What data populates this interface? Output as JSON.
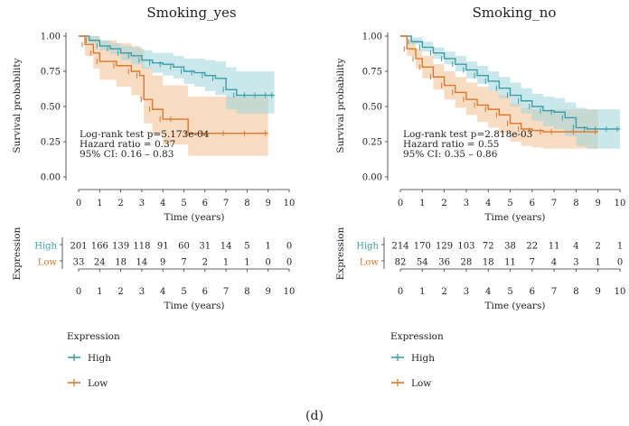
{
  "caption": "(d)",
  "colors": {
    "high": "#3a9ca6",
    "low": "#d9782e",
    "high_fill": "#9fd6dc",
    "low_fill": "#f3c9a2"
  },
  "chart_data": [
    {
      "type": "line",
      "title": "Smoking_yes",
      "xlabel": "Time (years)",
      "ylabel": "Survival probability",
      "xlim": [
        0,
        10
      ],
      "ylim": [
        0,
        1
      ],
      "xticks": [
        "0",
        "1",
        "2",
        "3",
        "4",
        "5",
        "6",
        "7",
        "8",
        "9",
        "10"
      ],
      "yticks": [
        "0.00",
        "0.25",
        "0.50",
        "0.75",
        "1.00"
      ],
      "annotation": [
        "Log-rank test p=5.173e-04",
        "Hazard ratio = 0.37",
        "95% CI: 0.16 – 0.83"
      ],
      "series": [
        {
          "name": "High",
          "x": [
            0,
            0.5,
            1,
            1.5,
            2,
            2.5,
            3,
            3.5,
            4,
            4.5,
            5,
            5.5,
            6,
            6.5,
            7,
            7.5,
            8,
            8.5,
            9,
            9.3
          ],
          "y": [
            1.0,
            0.97,
            0.93,
            0.91,
            0.88,
            0.86,
            0.83,
            0.81,
            0.8,
            0.78,
            0.75,
            0.74,
            0.72,
            0.7,
            0.62,
            0.58,
            0.58,
            0.58,
            0.58,
            0.58
          ],
          "lower": [
            1.0,
            0.95,
            0.9,
            0.87,
            0.83,
            0.8,
            0.77,
            0.74,
            0.72,
            0.7,
            0.66,
            0.64,
            0.61,
            0.58,
            0.48,
            0.45,
            0.45,
            0.45,
            0.45,
            0.45
          ],
          "upper": [
            1.0,
            1.0,
            0.97,
            0.95,
            0.93,
            0.92,
            0.9,
            0.88,
            0.88,
            0.86,
            0.84,
            0.84,
            0.83,
            0.82,
            0.78,
            0.75,
            0.75,
            0.75,
            0.75,
            0.75
          ]
        },
        {
          "name": "Low",
          "x": [
            0,
            0.3,
            0.7,
            1,
            1.8,
            2.5,
            2.9,
            3.1,
            3.5,
            4,
            4.5,
            5.2,
            6,
            7,
            8,
            9
          ],
          "y": [
            1.0,
            0.94,
            0.88,
            0.82,
            0.79,
            0.75,
            0.72,
            0.55,
            0.48,
            0.41,
            0.41,
            0.31,
            0.31,
            0.31,
            0.31,
            0.31
          ],
          "lower": [
            1.0,
            0.86,
            0.77,
            0.69,
            0.64,
            0.58,
            0.55,
            0.38,
            0.3,
            0.23,
            0.23,
            0.15,
            0.15,
            0.15,
            0.15,
            0.15
          ],
          "upper": [
            1.0,
            1.0,
            1.0,
            0.97,
            0.95,
            0.93,
            0.91,
            0.78,
            0.72,
            0.65,
            0.65,
            0.57,
            0.57,
            0.57,
            0.57,
            0.57
          ]
        }
      ],
      "risk_table": {
        "ylabel": "Expression",
        "xlabel": "Time (years)",
        "rows": [
          {
            "name": "High",
            "values": [
              "201",
              "166",
              "139",
              "118",
              "91",
              "60",
              "31",
              "14",
              "5",
              "1",
              "0"
            ]
          },
          {
            "name": "Low",
            "values": [
              "33",
              "24",
              "18",
              "14",
              "9",
              "7",
              "2",
              "1",
              "1",
              "0",
              "0"
            ]
          }
        ]
      },
      "legend": {
        "title": "Expression",
        "entries": [
          "High",
          "Low"
        ]
      }
    },
    {
      "type": "line",
      "title": "Smoking_no",
      "xlabel": "Time (years)",
      "ylabel": "Survival probability",
      "xlim": [
        0,
        10
      ],
      "ylim": [
        0,
        1
      ],
      "xticks": [
        "0",
        "1",
        "2",
        "3",
        "4",
        "5",
        "6",
        "7",
        "8",
        "9",
        "10"
      ],
      "yticks": [
        "0.00",
        "0.25",
        "0.50",
        "0.75",
        "1.00"
      ],
      "annotation": [
        "Log-rank test p=2.818e-03",
        "Hazard ratio = 0.55",
        "95% CI: 0.35 – 0.86"
      ],
      "series": [
        {
          "name": "High",
          "x": [
            0,
            0.5,
            1,
            1.5,
            2,
            2.5,
            3,
            3.5,
            4,
            4.5,
            5,
            5.5,
            6,
            6.5,
            7,
            7.5,
            8,
            8.5,
            9,
            9.5,
            10
          ],
          "y": [
            1.0,
            0.96,
            0.92,
            0.88,
            0.84,
            0.8,
            0.76,
            0.72,
            0.68,
            0.63,
            0.58,
            0.54,
            0.5,
            0.47,
            0.46,
            0.42,
            0.35,
            0.34,
            0.34,
            0.34,
            0.34
          ],
          "lower": [
            1.0,
            0.94,
            0.89,
            0.84,
            0.8,
            0.75,
            0.7,
            0.66,
            0.61,
            0.56,
            0.5,
            0.45,
            0.4,
            0.36,
            0.34,
            0.29,
            0.22,
            0.2,
            0.2,
            0.2,
            0.2
          ],
          "upper": [
            1.0,
            0.99,
            0.96,
            0.92,
            0.89,
            0.86,
            0.82,
            0.79,
            0.75,
            0.71,
            0.67,
            0.63,
            0.59,
            0.57,
            0.56,
            0.53,
            0.49,
            0.48,
            0.48,
            0.48,
            0.48
          ]
        },
        {
          "name": "Low",
          "x": [
            0,
            0.3,
            0.7,
            1,
            1.5,
            2,
            2.5,
            3,
            3.5,
            4,
            4.5,
            5,
            5.5,
            6,
            6.5,
            7,
            8,
            9
          ],
          "y": [
            1.0,
            0.91,
            0.84,
            0.78,
            0.71,
            0.65,
            0.6,
            0.55,
            0.51,
            0.48,
            0.44,
            0.38,
            0.34,
            0.33,
            0.32,
            0.32,
            0.32,
            0.32
          ],
          "lower": [
            1.0,
            0.86,
            0.77,
            0.7,
            0.62,
            0.55,
            0.49,
            0.44,
            0.39,
            0.35,
            0.31,
            0.25,
            0.22,
            0.21,
            0.2,
            0.2,
            0.2,
            0.2
          ],
          "upper": [
            1.0,
            0.97,
            0.91,
            0.86,
            0.8,
            0.75,
            0.71,
            0.67,
            0.64,
            0.61,
            0.58,
            0.52,
            0.49,
            0.48,
            0.48,
            0.48,
            0.48,
            0.48
          ]
        }
      ],
      "risk_table": {
        "ylabel": "Expression",
        "xlabel": "Time (years)",
        "rows": [
          {
            "name": "High",
            "values": [
              "214",
              "170",
              "129",
              "103",
              "72",
              "38",
              "22",
              "11",
              "4",
              "2",
              "1"
            ]
          },
          {
            "name": "Low",
            "values": [
              "82",
              "54",
              "36",
              "28",
              "18",
              "11",
              "7",
              "4",
              "3",
              "1",
              "0"
            ]
          }
        ]
      },
      "legend": {
        "title": "Expression",
        "entries": [
          "High",
          "Low"
        ]
      }
    }
  ]
}
